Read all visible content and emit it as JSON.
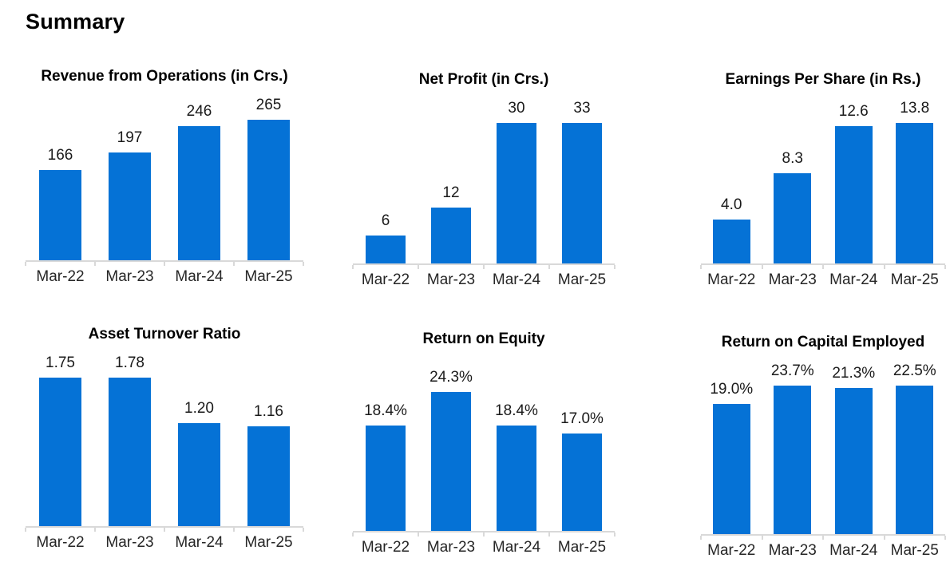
{
  "page": {
    "title": "Summary"
  },
  "colors": {
    "bar": "#0572D6",
    "axis": "#D9D9D9",
    "data_label_text": "#1a1a1a",
    "category_label_text": "#262626",
    "title_text": "#000000"
  },
  "chart_data": [
    {
      "type": "bar",
      "title": "Revenue from Operations (in Crs.)",
      "categories": [
        "Mar-22",
        "Mar-23",
        "Mar-24",
        "Mar-25"
      ],
      "values": [
        166,
        197,
        246,
        265
      ],
      "data_labels": [
        "166",
        "197",
        "246",
        "265"
      ],
      "xlabel": "",
      "ylabel": "",
      "ylim": [
        0,
        300
      ],
      "grid": false,
      "legend": false
    },
    {
      "type": "bar",
      "title": "Net Profit (in Crs.)",
      "categories": [
        "Mar-22",
        "Mar-23",
        "Mar-24",
        "Mar-25"
      ],
      "values": [
        6,
        12,
        30,
        33
      ],
      "data_labels": [
        "6",
        "12",
        "30",
        "33"
      ],
      "xlabel": "",
      "ylabel": "",
      "ylim": [
        0,
        35
      ],
      "grid": false,
      "legend": false
    },
    {
      "type": "bar",
      "title": "Earnings Per Share (in Rs.)",
      "categories": [
        "Mar-22",
        "Mar-23",
        "Mar-24",
        "Mar-25"
      ],
      "values": [
        4.0,
        8.3,
        12.6,
        13.8
      ],
      "data_labels": [
        "4.0",
        "8.3",
        "12.6",
        "13.8"
      ],
      "xlabel": "",
      "ylabel": "",
      "ylim": [
        0,
        15
      ],
      "grid": false,
      "legend": false
    },
    {
      "type": "bar",
      "title": "Asset Turnover Ratio",
      "categories": [
        "Mar-22",
        "Mar-23",
        "Mar-24",
        "Mar-25"
      ],
      "values": [
        1.75,
        1.78,
        1.2,
        1.16
      ],
      "data_labels": [
        "1.75",
        "1.78",
        "1.20",
        "1.16"
      ],
      "xlabel": "",
      "ylabel": "",
      "ylim": [
        0,
        2
      ],
      "grid": false,
      "legend": false
    },
    {
      "type": "bar",
      "title": "Return on Equity",
      "categories": [
        "Mar-22",
        "Mar-23",
        "Mar-24",
        "Mar-25"
      ],
      "values": [
        18.4,
        24.3,
        18.4,
        17.0
      ],
      "data_labels": [
        "18.4%",
        "24.3%",
        "18.4%",
        "17.0%"
      ],
      "xlabel": "",
      "ylabel": "",
      "ylim": [
        0,
        30
      ],
      "grid": false,
      "legend": false
    },
    {
      "type": "bar",
      "title": "Return on Capital Employed",
      "categories": [
        "Mar-22",
        "Mar-23",
        "Mar-24",
        "Mar-25"
      ],
      "values": [
        19.0,
        23.7,
        21.3,
        22.5
      ],
      "data_labels": [
        "19.0%",
        "23.7%",
        "21.3%",
        "22.5%"
      ],
      "xlabel": "",
      "ylabel": "",
      "ylim": [
        0,
        25
      ],
      "grid": false,
      "legend": false
    }
  ]
}
